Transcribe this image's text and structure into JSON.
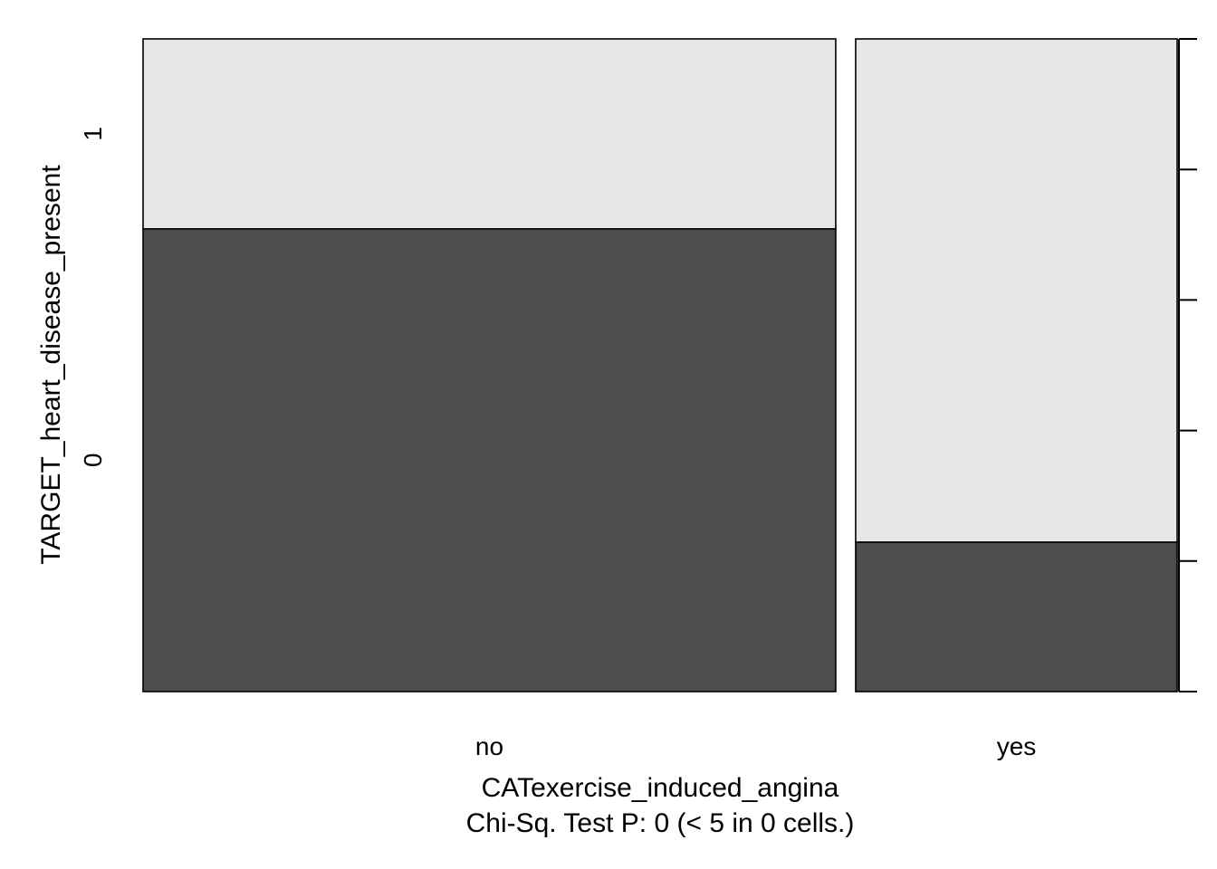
{
  "chart_data": {
    "type": "mosaic",
    "xlabel": "CATexercise_induced_angina",
    "subtitle": "Chi-Sq. Test P: 0  (< 5 in  0  cells.)",
    "ylabel": "TARGET_heart_disease_present",
    "categories": [
      "no",
      "yes"
    ],
    "column_shares": [
      0.683,
      0.317
    ],
    "levels": [
      "0",
      "1"
    ],
    "proportions": [
      {
        "category": "no",
        "values": {
          "0": 0.709,
          "1": 0.291
        }
      },
      {
        "category": "yes",
        "values": {
          "0": 0.229,
          "1": 0.771
        }
      }
    ],
    "right_axis_ticks": [
      0,
      0.2,
      0.4,
      0.6,
      0.8,
      1
    ],
    "colors": {
      "0": "#4d4d4d",
      "1": "#e6e6e6",
      "border": "#000000"
    }
  }
}
